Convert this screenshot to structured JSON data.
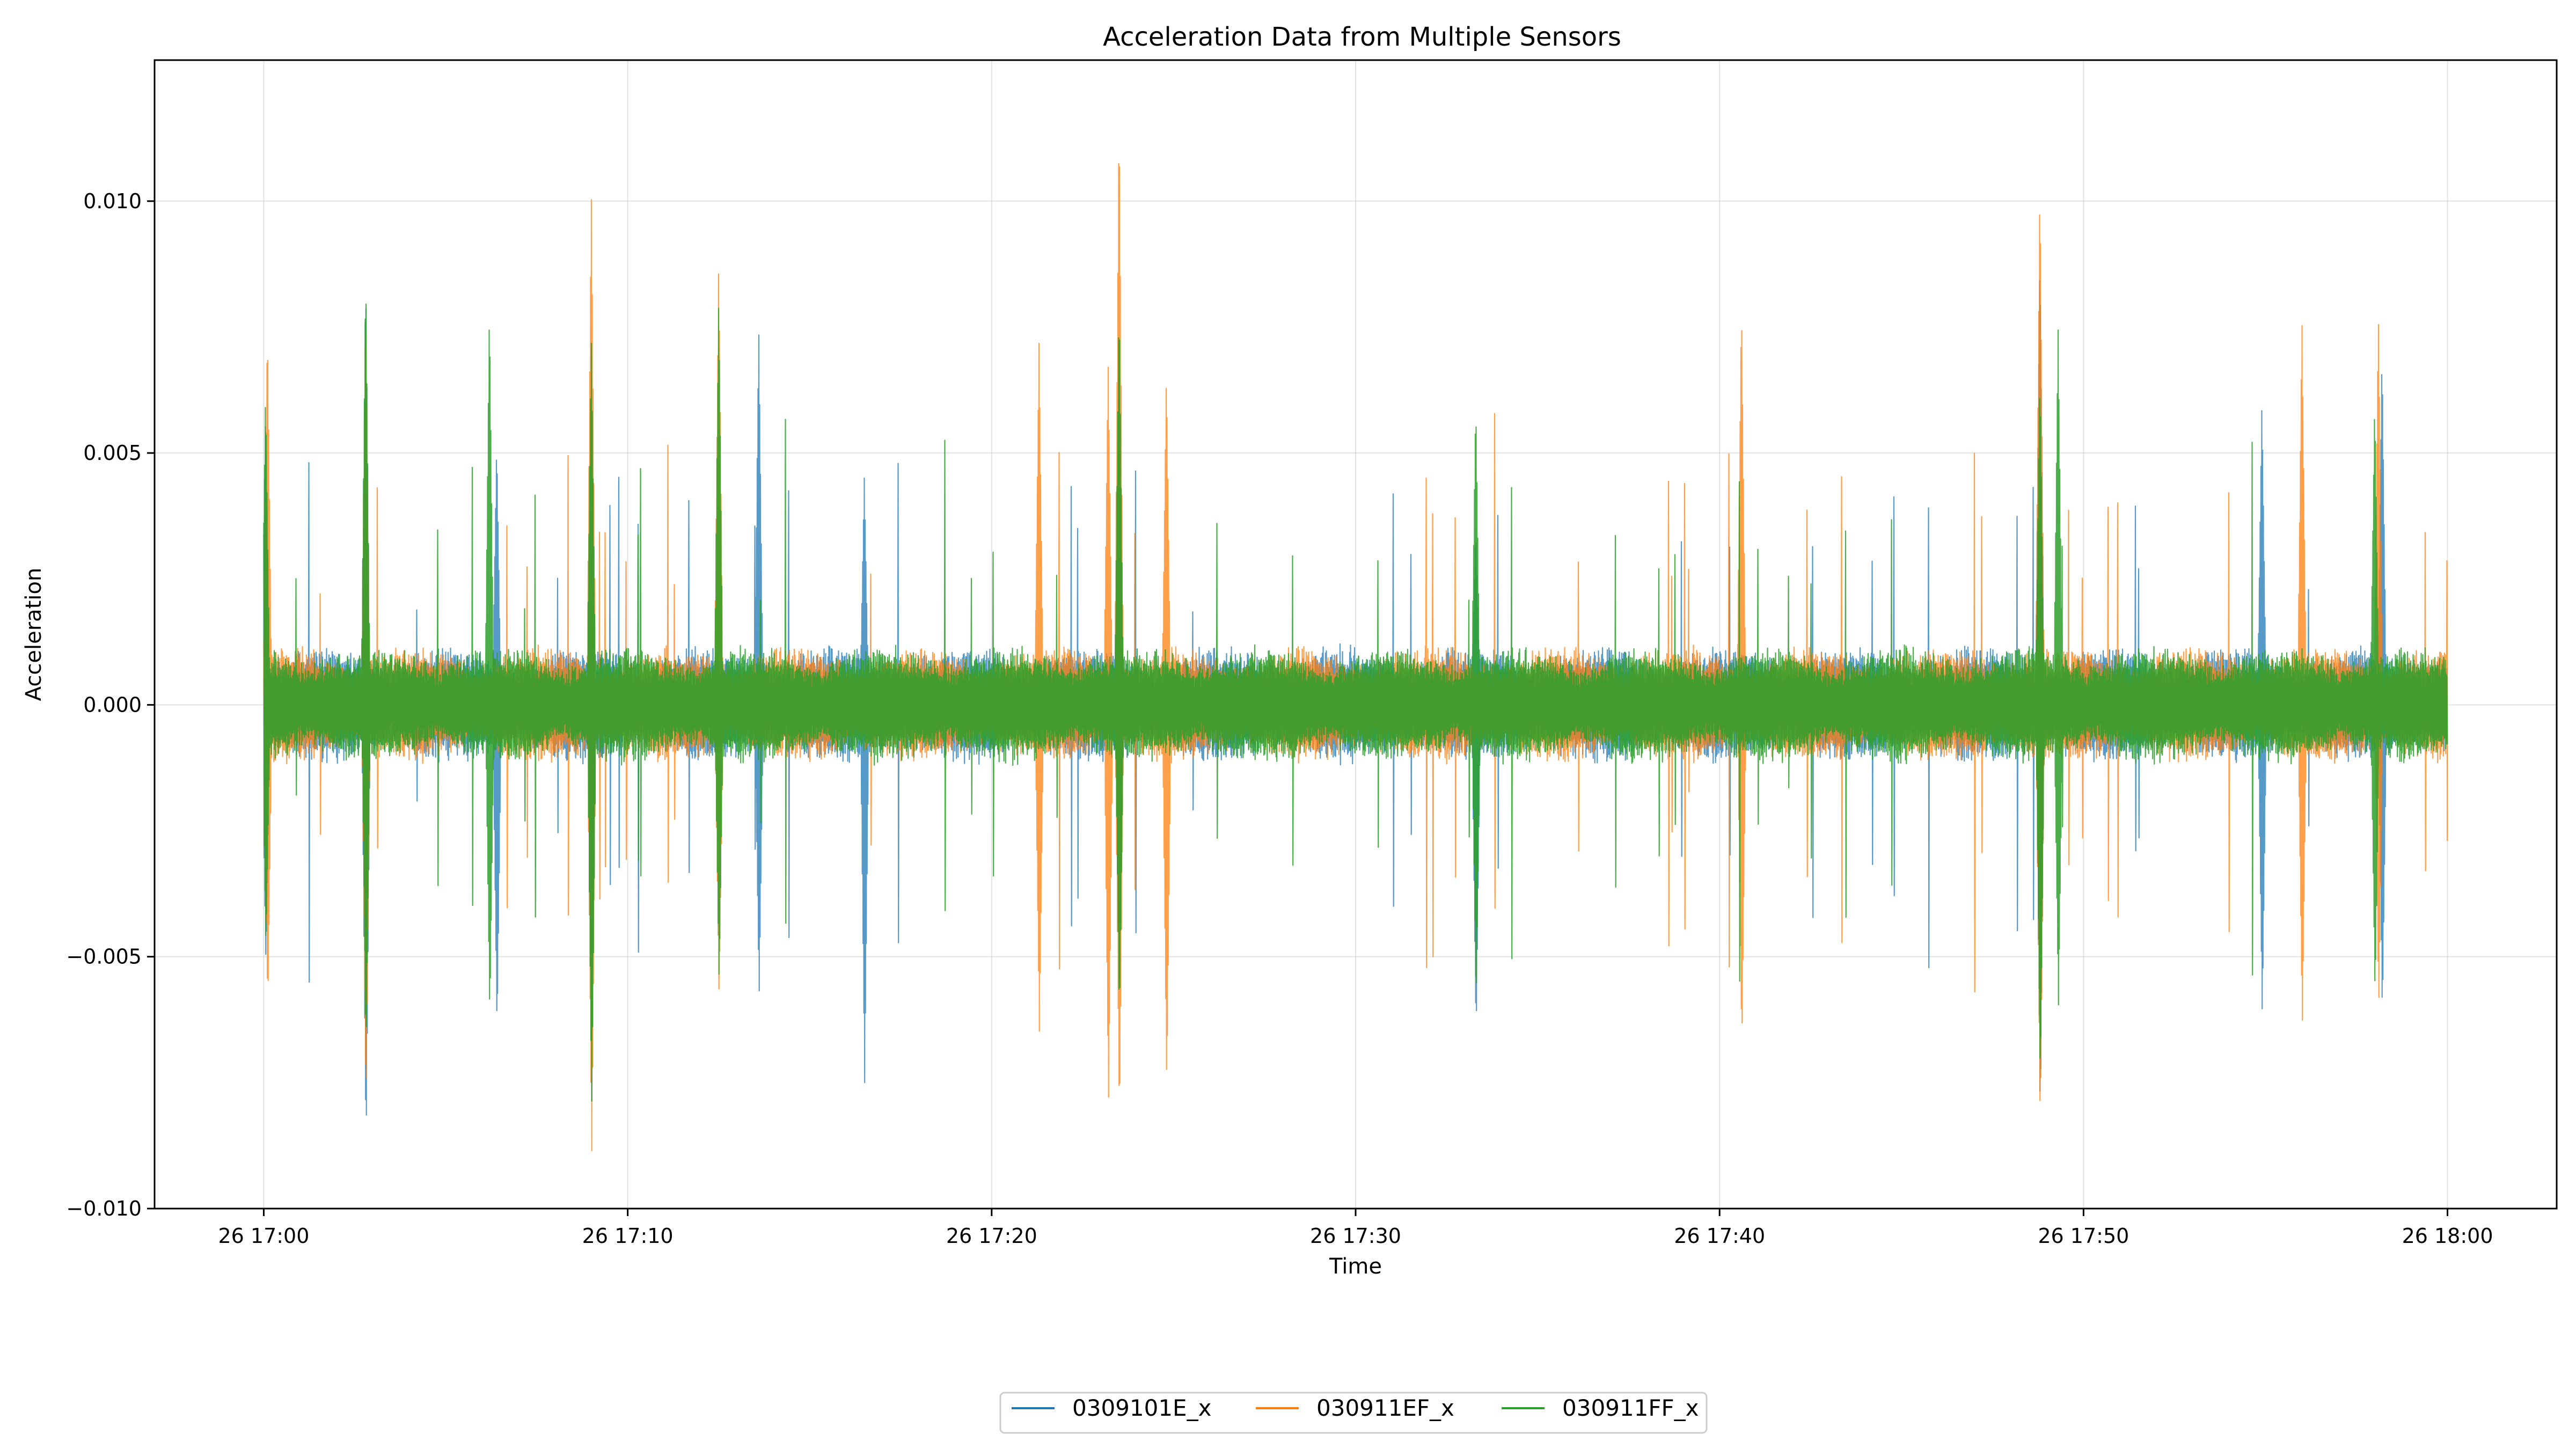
{
  "chart_data": {
    "type": "line",
    "title": "Acceleration Data from Multiple Sensors",
    "xlabel": "Time",
    "ylabel": "Acceleration",
    "x_range": [
      "26 17:00",
      "26 18:00"
    ],
    "xlim": [
      "26 16:57",
      "26 18:03"
    ],
    "ylim": [
      -0.01,
      0.0128
    ],
    "x_ticks": [
      "26 17:00",
      "26 17:10",
      "26 17:20",
      "26 17:30",
      "26 17:40",
      "26 17:50",
      "26 18:00"
    ],
    "y_ticks": [
      {
        "value": -0.01,
        "label": "−0.010"
      },
      {
        "value": -0.005,
        "label": "−0.005"
      },
      {
        "value": 0.0,
        "label": "0.000"
      },
      {
        "value": 0.005,
        "label": "0.005"
      },
      {
        "value": 0.01,
        "label": "0.010"
      }
    ],
    "grid": true,
    "legend_placement": "bottom-center",
    "baseline_amplitude": 0.0009,
    "series": [
      {
        "name": "0309101E_x",
        "color": "#1f77b4",
        "spikes": [
          {
            "t": 0.05,
            "max": 0.0058,
            "min": -0.0052
          },
          {
            "t": 2.8,
            "max": 0.0085,
            "min": -0.0088
          },
          {
            "t": 6.4,
            "max": 0.0052,
            "min": -0.0065
          },
          {
            "t": 9.0,
            "max": 0.0072,
            "min": -0.008
          },
          {
            "t": 13.6,
            "max": 0.0075,
            "min": -0.0058
          },
          {
            "t": 16.5,
            "max": 0.0045,
            "min": -0.0075
          },
          {
            "t": 23.5,
            "max": 0.008,
            "min": -0.006
          },
          {
            "t": 33.3,
            "max": 0.0035,
            "min": -0.0066
          },
          {
            "t": 48.8,
            "max": 0.009,
            "min": -0.0082
          },
          {
            "t": 54.9,
            "max": 0.006,
            "min": -0.0062
          },
          {
            "t": 58.2,
            "max": 0.007,
            "min": -0.0062
          }
        ]
      },
      {
        "name": "030911EF_x",
        "color": "#ff7f0e",
        "spikes": [
          {
            "t": 0.1,
            "max": 0.0075,
            "min": -0.006
          },
          {
            "t": 2.8,
            "max": 0.008,
            "min": -0.008
          },
          {
            "t": 9.0,
            "max": 0.0102,
            "min": -0.009
          },
          {
            "t": 12.5,
            "max": 0.0088,
            "min": -0.0058
          },
          {
            "t": 21.3,
            "max": 0.0072,
            "min": -0.0065
          },
          {
            "t": 23.2,
            "max": 0.0068,
            "min": -0.0079
          },
          {
            "t": 23.5,
            "max": 0.0118,
            "min": -0.0083
          },
          {
            "t": 24.8,
            "max": 0.0066,
            "min": -0.0076
          },
          {
            "t": 40.6,
            "max": 0.008,
            "min": -0.0068
          },
          {
            "t": 48.8,
            "max": 0.0104,
            "min": -0.0084
          },
          {
            "t": 56.0,
            "max": 0.0077,
            "min": -0.0064
          },
          {
            "t": 58.1,
            "max": 0.0078,
            "min": -0.006
          }
        ]
      },
      {
        "name": "030911FF_x",
        "color": "#2ca02c",
        "spikes": [
          {
            "t": 0.05,
            "max": 0.0062,
            "min": -0.0048
          },
          {
            "t": 2.8,
            "max": 0.0086,
            "min": -0.0069
          },
          {
            "t": 6.2,
            "max": 0.0079,
            "min": -0.0062
          },
          {
            "t": 9.0,
            "max": 0.0073,
            "min": -0.008
          },
          {
            "t": 12.5,
            "max": 0.0081,
            "min": -0.0055
          },
          {
            "t": 23.5,
            "max": 0.008,
            "min": -0.0062
          },
          {
            "t": 33.3,
            "max": 0.006,
            "min": -0.006
          },
          {
            "t": 48.8,
            "max": 0.0065,
            "min": -0.0075
          },
          {
            "t": 49.3,
            "max": 0.0075,
            "min": -0.006
          },
          {
            "t": 58.0,
            "max": 0.006,
            "min": -0.0058
          }
        ]
      }
    ]
  }
}
